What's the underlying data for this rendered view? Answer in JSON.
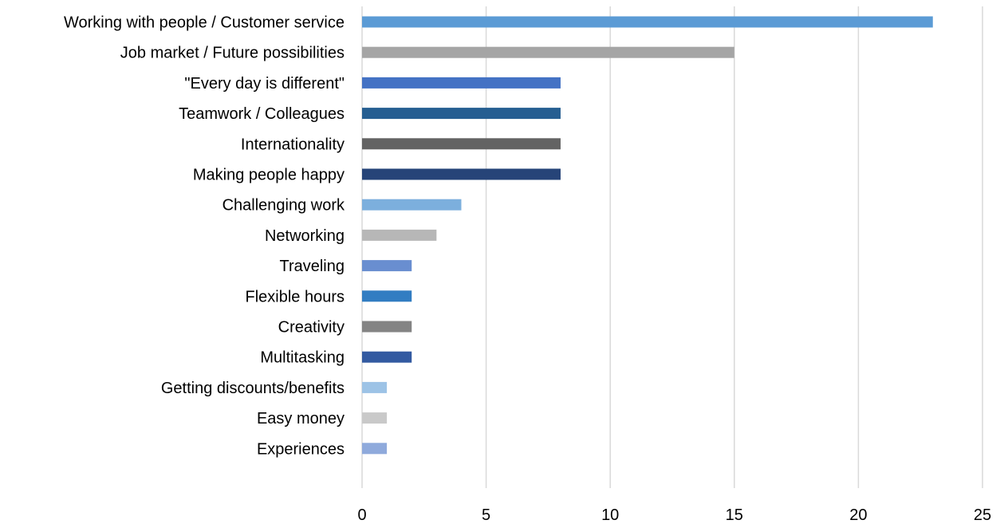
{
  "chart_data": {
    "type": "bar",
    "orientation": "horizontal",
    "title": "",
    "xlabel": "",
    "ylabel": "",
    "xlim": [
      0,
      25
    ],
    "x_ticks": [
      0,
      5,
      10,
      15,
      20,
      25
    ],
    "grid": "vertical",
    "legend": "none",
    "categories": [
      "Working with people / Customer service",
      "Job market / Future possibilities",
      "\"Every day is different\"",
      "Teamwork / Colleagues",
      "Internationality",
      "Making people happy",
      "Challenging work",
      "Networking",
      "Traveling",
      "Flexible hours",
      "Creativity",
      "Multitasking",
      "Getting discounts/benefits",
      "Easy money",
      "Experiences"
    ],
    "values": [
      23,
      15,
      8,
      8,
      8,
      8,
      4,
      3,
      2,
      2,
      2,
      2,
      1,
      1,
      1
    ],
    "colors": [
      "#5b9bd5",
      "#a5a5a5",
      "#4472c4",
      "#255e91",
      "#636363",
      "#264478",
      "#7cafdd",
      "#b7b7b7",
      "#698ed0",
      "#327dc2",
      "#848484",
      "#335aa1",
      "#9dc3e6",
      "#c9c9c9",
      "#8faadc"
    ]
  }
}
